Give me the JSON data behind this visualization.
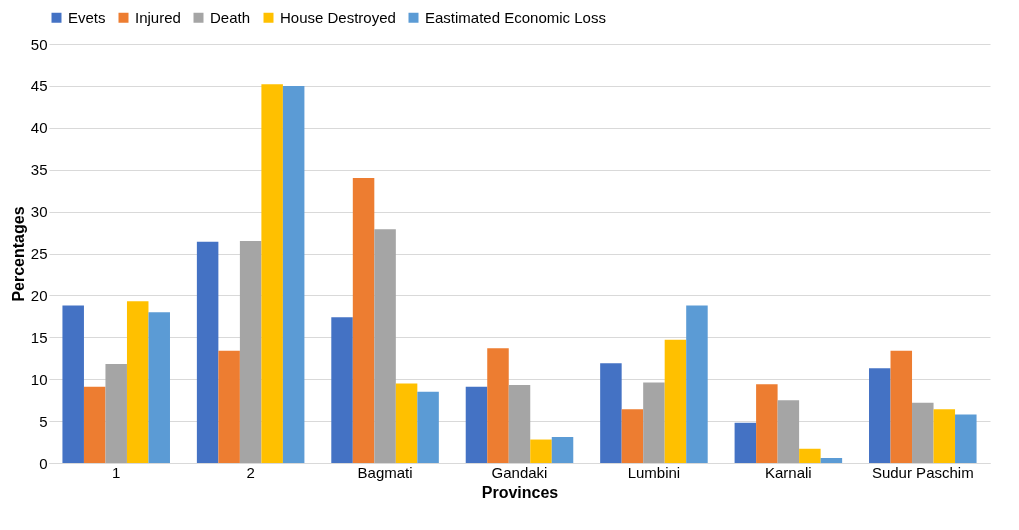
{
  "chart_data": {
    "type": "bar",
    "xlabel": "Provinces",
    "ylabel": "Percentages",
    "categories": [
      "1",
      "2",
      "Bagmati",
      "Gandaki",
      "Lumbini",
      "Karnali",
      "Sudur Paschim"
    ],
    "series": [
      {
        "name": "Evets",
        "color": "#4472c4",
        "values": [
          18.8,
          26.4,
          17.4,
          9.1,
          11.9,
          4.8,
          11.3
        ]
      },
      {
        "name": "Injured",
        "color": "#ed7d31",
        "values": [
          9.1,
          13.4,
          34.0,
          13.7,
          6.4,
          9.4,
          13.4
        ]
      },
      {
        "name": "Death",
        "color": "#a5a5a5",
        "values": [
          11.8,
          26.5,
          27.9,
          9.3,
          9.6,
          7.5,
          7.2
        ]
      },
      {
        "name": "House Destroyed",
        "color": "#ffc000",
        "values": [
          19.3,
          45.2,
          9.5,
          2.8,
          14.7,
          1.7,
          6.4
        ]
      },
      {
        "name": "Eastimated Economic Loss",
        "color": "#5b9bd5",
        "values": [
          18.0,
          45.0,
          8.5,
          3.1,
          18.8,
          0.6,
          5.8
        ]
      }
    ],
    "ylim": [
      0,
      50
    ],
    "yticks": [
      0,
      5,
      10,
      15,
      20,
      25,
      30,
      35,
      40,
      45,
      50
    ],
    "grid": "y",
    "legend": "top"
  }
}
